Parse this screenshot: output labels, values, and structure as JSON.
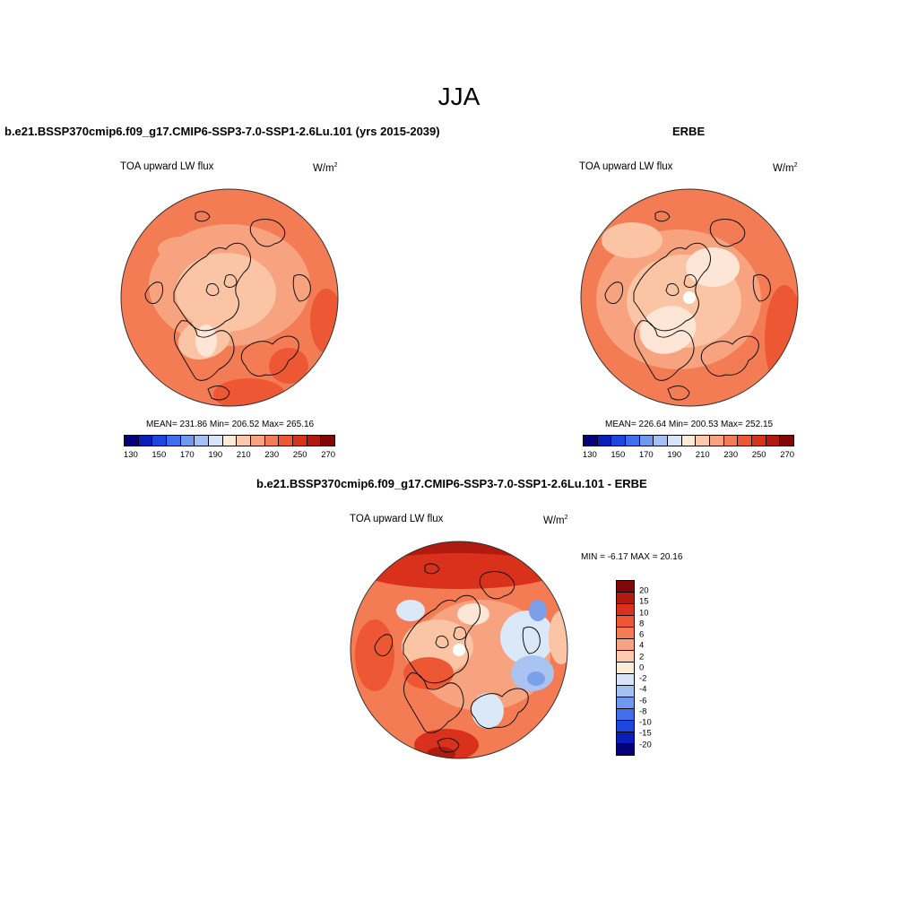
{
  "title": "JJA",
  "panels": {
    "model": {
      "title": "b.e21.BSSP370cmip6.f09_g17.CMIP6-SSP3-7.0-SSP1-2.6Lu.101 (yrs 2015-2039)",
      "field": "TOA upward LW flux",
      "unit_base": "W/m",
      "unit_exp": "2",
      "stats": "MEAN= 231.86  Min= 206.52  Max= 265.16"
    },
    "obs": {
      "title": "ERBE",
      "field": "TOA upward LW flux",
      "unit_base": "W/m",
      "unit_exp": "2",
      "stats": "MEAN= 226.64  Min= 200.53  Max= 252.15"
    },
    "diff": {
      "title": "b.e21.BSSP370cmip6.f09_g17.CMIP6-SSP3-7.0-SSP1-2.6Lu.101 - ERBE",
      "field": "TOA upward LW flux",
      "unit_base": "W/m",
      "unit_exp": "2",
      "stats": "MIN =  -6.17 MAX =  20.16"
    }
  },
  "colorbar_abs": {
    "labels": [
      "130",
      "150",
      "170",
      "190",
      "210",
      "230",
      "250",
      "270"
    ],
    "colors": [
      "#06007a",
      "#0b1fb8",
      "#1c46dd",
      "#3f6fea",
      "#6f98ee",
      "#a3c0f2",
      "#d6e5f8",
      "#fdebd6",
      "#fcc9ac",
      "#f9a282",
      "#f57b56",
      "#ee5634",
      "#d9311c",
      "#b01a0f",
      "#800808"
    ]
  },
  "colorbar_diff": {
    "labels": [
      "20",
      "15",
      "10",
      "8",
      "6",
      "4",
      "2",
      "0",
      "-2",
      "-4",
      "-6",
      "-8",
      "-10",
      "-15",
      "-20"
    ],
    "colors": [
      "#800808",
      "#b01a0f",
      "#d9311c",
      "#ee5634",
      "#f57b56",
      "#f9a282",
      "#fcc9ac",
      "#fdebd6",
      "#d6e5f8",
      "#a3c0f2",
      "#6f98ee",
      "#3f6fea",
      "#1c46dd",
      "#0b1fb8",
      "#06007a"
    ]
  },
  "map_palette": {
    "pale": "#fde6d6",
    "light": "#fbc4a5",
    "mid": "#f8a37f",
    "orange": "#f47c55",
    "deep": "#ee5733",
    "red": "#d9311c",
    "dark": "#b01a0f",
    "blue1": "#dbe8f8",
    "blue2": "#a9c4f0",
    "blue3": "#7b9fe8"
  }
}
